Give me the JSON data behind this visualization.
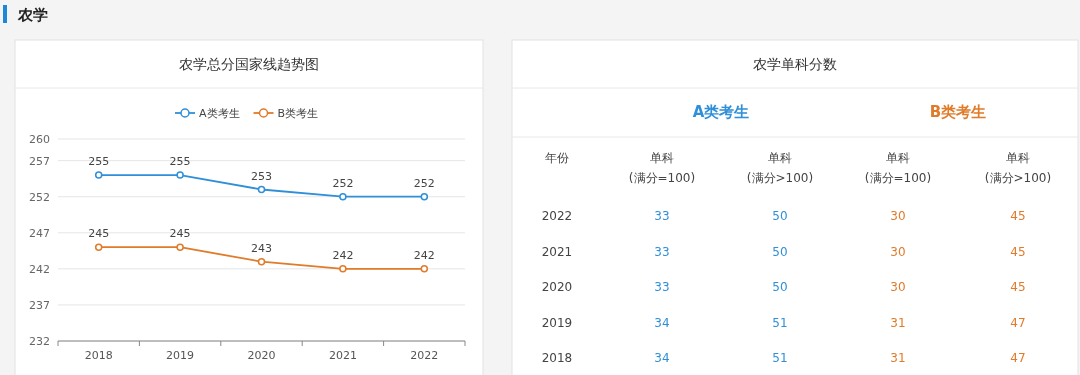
{
  "chart_data": [
    {
      "type": "line",
      "title": "农学总分国家线趋势图",
      "annotations": [
        "农学"
      ],
      "categories": [
        "2018",
        "2019",
        "2020",
        "2021",
        "2022"
      ],
      "series": [
        {
          "name": "A类考生",
          "color": "#2f8fd8",
          "values": [
            255,
            255,
            253,
            252,
            252
          ]
        },
        {
          "name": "B类考生",
          "color": "#e07b2a",
          "values": [
            245,
            245,
            243,
            242,
            242
          ]
        }
      ],
      "ylim": [
        232,
        260
      ],
      "yticks": [
        232,
        237,
        242,
        247,
        252,
        257,
        260
      ],
      "grid": "y",
      "legend": "top",
      "marker": "circle",
      "data_labels": true
    },
    {
      "type": "heatmap",
      "title": "农学单科分数",
      "ylabel": "年份",
      "annotations": [
        "A类考生",
        "B类考生"
      ],
      "categories": [
        "单科\n(满分=100)",
        "单科\n(满分>100)",
        "单科\n(满分=100)",
        "单科\n(满分>100)"
      ],
      "colors": [
        "#2f8fd8",
        "#2f8fd8",
        "#e07b2a",
        "#e07b2a"
      ],
      "y_categories": [
        "2022",
        "2021",
        "2020",
        "2019",
        "2018"
      ],
      "cells": [
        [
          33,
          50,
          30,
          45
        ],
        [
          33,
          50,
          30,
          45
        ],
        [
          33,
          50,
          30,
          45
        ],
        [
          34,
          51,
          31,
          47
        ],
        [
          34,
          51,
          31,
          47
        ]
      ],
      "data_labels": true
    }
  ]
}
